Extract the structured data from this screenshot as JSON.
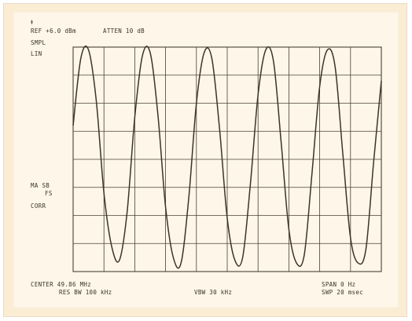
{
  "chart_data": {
    "type": "line",
    "title": "",
    "xlabel": "",
    "ylabel": "",
    "grid": true,
    "divisions": {
      "x": 10,
      "y": 8
    },
    "header": {
      "marker": "ꬸ",
      "ref": "REF +6.0 dBm",
      "atten": "ATTEN 10 dB"
    },
    "left_labels": {
      "smpl": "SMPL",
      "lin": "LIN",
      "fs_line1": "MA SB",
      "fs_line2": "FS",
      "corr": "CORR"
    },
    "footer": {
      "center": "CENTER 49.86 MHz",
      "rbw": "RES BW 100 kHz",
      "vbw": "VBW 30 kHz",
      "span": "SPAN 0 Hz",
      "sweep": "SWP 20 msec"
    },
    "series": [
      {
        "x": [
          0,
          0.25,
          0.5,
          0.75,
          1.0,
          1.25,
          1.5,
          1.75,
          2.0,
          2.25,
          2.5,
          2.75,
          3.0,
          3.25,
          3.5,
          3.75,
          4.0,
          4.25,
          4.5,
          4.75,
          5.0,
          5.25,
          5.5,
          5.75,
          6.0,
          6.25,
          6.5,
          6.75,
          7.0,
          7.25,
          7.5,
          7.75,
          8.0,
          8.25,
          8.5,
          8.75,
          9.0,
          9.25,
          9.5,
          9.75,
          10.0
        ],
        "y": [
          5.2,
          7.6,
          7.9,
          6.1,
          2.8,
          0.9,
          0.4,
          2.1,
          5.5,
          7.7,
          7.8,
          5.6,
          2.3,
          0.5,
          0.3,
          2.6,
          6.0,
          7.8,
          7.6,
          5.1,
          1.9,
          0.4,
          0.5,
          3.1,
          6.3,
          7.9,
          7.5,
          4.6,
          1.5,
          0.3,
          0.6,
          3.5,
          6.6,
          7.9,
          7.3,
          4.2,
          1.2,
          0.3,
          0.8,
          3.9,
          6.8
        ]
      }
    ],
    "xlim": [
      0,
      10
    ],
    "ylim": [
      0,
      8
    ]
  },
  "colors": {
    "frame": "#fbecd4",
    "paper": "#fdf6e9",
    "ink": "#3e3328",
    "grid": "#4b4034"
  }
}
